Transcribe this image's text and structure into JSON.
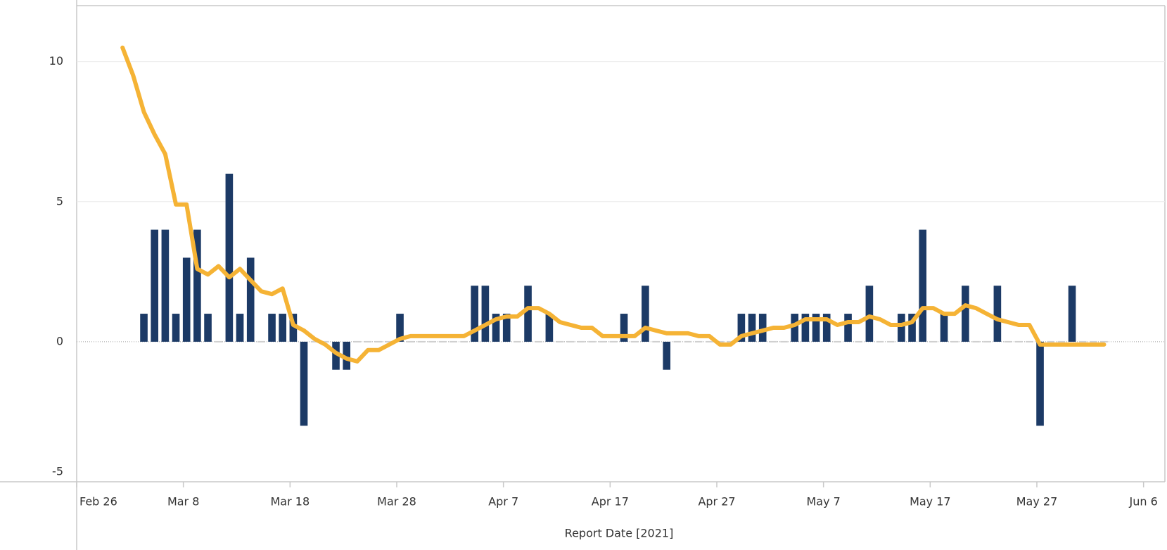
{
  "chart_data": {
    "type": "bar",
    "x_label": "Report Date [2021]",
    "x": [
      "2021-03-02",
      "2021-03-03",
      "2021-03-04",
      "2021-03-05",
      "2021-03-06",
      "2021-03-07",
      "2021-03-08",
      "2021-03-09",
      "2021-03-10",
      "2021-03-11",
      "2021-03-12",
      "2021-03-13",
      "2021-03-14",
      "2021-03-15",
      "2021-03-16",
      "2021-03-17",
      "2021-03-18",
      "2021-03-19",
      "2021-03-20",
      "2021-03-21",
      "2021-03-22",
      "2021-03-23",
      "2021-03-24",
      "2021-03-25",
      "2021-03-26",
      "2021-03-27",
      "2021-03-28",
      "2021-03-29",
      "2021-03-30",
      "2021-03-31",
      "2021-04-01",
      "2021-04-02",
      "2021-04-03",
      "2021-04-04",
      "2021-04-05",
      "2021-04-06",
      "2021-04-07",
      "2021-04-08",
      "2021-04-09",
      "2021-04-10",
      "2021-04-11",
      "2021-04-12",
      "2021-04-13",
      "2021-04-14",
      "2021-04-15",
      "2021-04-16",
      "2021-04-17",
      "2021-04-18",
      "2021-04-19",
      "2021-04-20",
      "2021-04-21",
      "2021-04-22",
      "2021-04-23",
      "2021-04-24",
      "2021-04-25",
      "2021-04-26",
      "2021-04-27",
      "2021-04-28",
      "2021-04-29",
      "2021-04-30",
      "2021-05-01",
      "2021-05-02",
      "2021-05-03",
      "2021-05-04",
      "2021-05-05",
      "2021-05-06",
      "2021-05-07",
      "2021-05-08",
      "2021-05-09",
      "2021-05-10",
      "2021-05-11",
      "2021-05-12",
      "2021-05-13",
      "2021-05-14",
      "2021-05-15",
      "2021-05-16",
      "2021-05-17",
      "2021-05-18",
      "2021-05-19",
      "2021-05-20",
      "2021-05-21",
      "2021-05-22",
      "2021-05-23",
      "2021-05-24",
      "2021-05-25",
      "2021-05-26",
      "2021-05-27",
      "2021-05-28",
      "2021-05-29",
      "2021-05-30",
      "2021-05-31",
      "2021-06-01",
      "2021-06-02"
    ],
    "series": [
      {
        "type": "bar",
        "color": "#1c3a66",
        "values": [
          null,
          null,
          1,
          4,
          4,
          1,
          3,
          4,
          1,
          0,
          6,
          1,
          3,
          0,
          1,
          1,
          1,
          -3,
          0,
          0,
          -1,
          -1,
          0,
          0,
          0,
          0,
          1,
          0,
          0,
          0,
          0,
          0,
          0,
          2,
          2,
          1,
          1,
          0,
          2,
          0,
          1,
          0,
          0,
          0,
          0,
          0,
          0,
          1,
          0,
          2,
          0,
          -1,
          0,
          0,
          0,
          0,
          0,
          0,
          1,
          1,
          1,
          0,
          0,
          1,
          1,
          1,
          1,
          0,
          1,
          0,
          2,
          0,
          0,
          1,
          1,
          4,
          0,
          1,
          0,
          2,
          0,
          0,
          2,
          0,
          0,
          0,
          -3,
          0,
          0,
          2,
          0,
          0,
          0
        ]
      },
      {
        "type": "line",
        "color": "#f5b335",
        "values": [
          10.5,
          9.5,
          8.2,
          7.4,
          6.7,
          4.9,
          4.9,
          2.6,
          2.4,
          2.7,
          2.3,
          2.6,
          2.2,
          1.8,
          1.7,
          1.9,
          0.6,
          0.4,
          0.1,
          -0.1,
          -0.4,
          -0.6,
          -0.7,
          -0.3,
          -0.3,
          -0.1,
          0.1,
          0.2,
          0.2,
          0.2,
          0.2,
          0.2,
          0.2,
          0.4,
          0.6,
          0.8,
          0.9,
          0.9,
          1.2,
          1.2,
          1.0,
          0.7,
          0.6,
          0.5,
          0.5,
          0.2,
          0.2,
          0.2,
          0.2,
          0.5,
          0.4,
          0.3,
          0.3,
          0.3,
          0.2,
          0.2,
          -0.1,
          -0.1,
          0.2,
          0.3,
          0.4,
          0.5,
          0.5,
          0.6,
          0.8,
          0.8,
          0.8,
          0.6,
          0.7,
          0.7,
          0.9,
          0.8,
          0.6,
          0.6,
          0.7,
          1.2,
          1.2,
          1.0,
          1.0,
          1.3,
          1.2,
          1.0,
          0.8,
          0.7,
          0.6,
          0.6,
          -0.1,
          -0.1,
          -0.1,
          -0.1,
          -0.1,
          -0.1,
          -0.1
        ]
      }
    ],
    "xlim": [
      "2021-02-26",
      "2021-06-08"
    ],
    "xticks": [
      {
        "value": "2021-02-26",
        "label": "Feb 26"
      },
      {
        "value": "2021-03-08",
        "label": "Mar 8"
      },
      {
        "value": "2021-03-18",
        "label": "Mar 18"
      },
      {
        "value": "2021-03-28",
        "label": "Mar 28"
      },
      {
        "value": "2021-04-07",
        "label": "Apr 7"
      },
      {
        "value": "2021-04-17",
        "label": "Apr 17"
      },
      {
        "value": "2021-04-27",
        "label": "Apr 27"
      },
      {
        "value": "2021-05-07",
        "label": "May 7"
      },
      {
        "value": "2021-05-17",
        "label": "May 17"
      },
      {
        "value": "2021-05-27",
        "label": "May 27"
      },
      {
        "value": "2021-06-06",
        "label": "Jun 6"
      }
    ],
    "ylim": [
      -5,
      12
    ],
    "yticks": [
      -5,
      0,
      5,
      10
    ],
    "grid": true
  }
}
